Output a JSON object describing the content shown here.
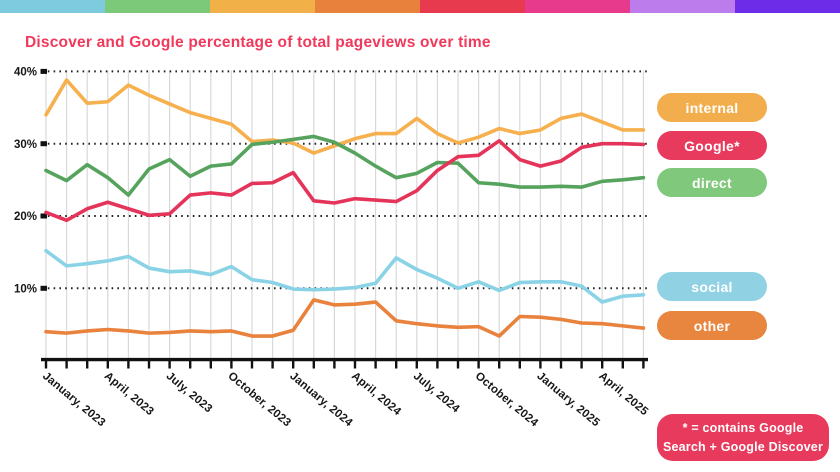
{
  "page_title": "Discover and Google percentage of total pageviews over time",
  "title_color": "#f0395c",
  "top_stripe": {
    "colors": [
      "#7ecbe0",
      "#7cc97a",
      "#f2b049",
      "#e8813c",
      "#e73a4e",
      "#e83a8d",
      "#bd7ceb",
      "#6c2ce8"
    ]
  },
  "chart_data": {
    "type": "line",
    "title": "Discover and Google percentage of total pageviews over time",
    "xlabel": "",
    "ylabel": "",
    "x_tick_labels": [
      "January, 2023",
      "April, 2023",
      "July, 2023",
      "October, 2023",
      "January, 2024",
      "April, 2024",
      "July, 2024",
      "October, 2024",
      "January, 2025",
      "April, 2025"
    ],
    "x_tick_positions": [
      0,
      3,
      6,
      9,
      12,
      15,
      18,
      21,
      24,
      27
    ],
    "n_points": 30,
    "x_unit": "monthly",
    "y_tick_labels": [
      "40%",
      "30%",
      "20%",
      "10%"
    ],
    "y_tick_values": [
      40,
      30,
      20,
      10
    ],
    "ylim": [
      0,
      42
    ],
    "grid": {
      "vertical": "solid-gray-every-month",
      "horizontal": "black-dotted-every-10pct"
    },
    "legend_position": "right",
    "series": [
      {
        "name": "internal",
        "line_color": "#f6b04e",
        "pill_color": "#f2ae4c",
        "values": [
          34.0,
          38.8,
          35.6,
          35.8,
          38.1,
          36.7,
          35.5,
          34.3,
          33.5,
          32.7,
          30.3,
          30.5,
          30.1,
          28.7,
          29.7,
          30.7,
          31.4,
          31.4,
          33.5,
          31.4,
          30.1,
          30.9,
          32.1,
          31.4,
          31.9,
          33.5,
          34.1,
          33.0,
          31.9,
          31.9
        ]
      },
      {
        "name": "Google*",
        "line_color": "#e5345a",
        "pill_color": "#e83a5c",
        "values": [
          20.5,
          19.4,
          21.0,
          21.9,
          21.0,
          20.1,
          20.3,
          22.9,
          23.2,
          22.9,
          24.5,
          24.6,
          26.0,
          22.1,
          21.8,
          22.4,
          22.2,
          22.0,
          23.5,
          26.3,
          28.2,
          28.4,
          30.4,
          27.8,
          26.9,
          27.6,
          29.5,
          30.0,
          30.0,
          29.9
        ]
      },
      {
        "name": "direct",
        "line_color": "#55a35d",
        "pill_color": "#80c97c",
        "values": [
          26.3,
          24.9,
          27.1,
          25.3,
          22.9,
          26.5,
          27.8,
          25.5,
          26.9,
          27.2,
          29.9,
          30.2,
          30.6,
          31.0,
          30.2,
          28.7,
          26.9,
          25.3,
          25.9,
          27.4,
          27.3,
          24.6,
          24.4,
          24.0,
          24.0,
          24.1,
          24.0,
          24.8,
          25.0,
          25.3
        ]
      },
      {
        "name": "social",
        "line_color": "#8ad3e6",
        "pill_color": "#90d2e4",
        "values": [
          15.2,
          13.1,
          13.4,
          13.8,
          14.4,
          12.8,
          12.3,
          12.4,
          11.9,
          13.0,
          11.2,
          10.8,
          9.9,
          9.8,
          9.9,
          10.1,
          10.7,
          14.2,
          12.6,
          11.4,
          10.0,
          10.9,
          9.7,
          10.8,
          10.9,
          10.9,
          10.3,
          8.1,
          8.9,
          9.1
        ]
      },
      {
        "name": "other",
        "line_color": "#e8823c",
        "pill_color": "#e8853e",
        "values": [
          4.0,
          3.8,
          4.1,
          4.3,
          4.1,
          3.8,
          3.9,
          4.1,
          4.0,
          4.1,
          3.4,
          3.4,
          4.2,
          8.4,
          7.7,
          7.8,
          8.1,
          5.5,
          5.1,
          4.8,
          4.6,
          4.7,
          3.4,
          6.1,
          6.0,
          5.7,
          5.2,
          5.1,
          4.8,
          4.5
        ]
      }
    ],
    "footnote": "* = contains Google Search + Google Discover",
    "footnote_lines": [
      "* = contains Google",
      "Search + Google Discover"
    ],
    "footnote_bg": "#e83a5c"
  }
}
